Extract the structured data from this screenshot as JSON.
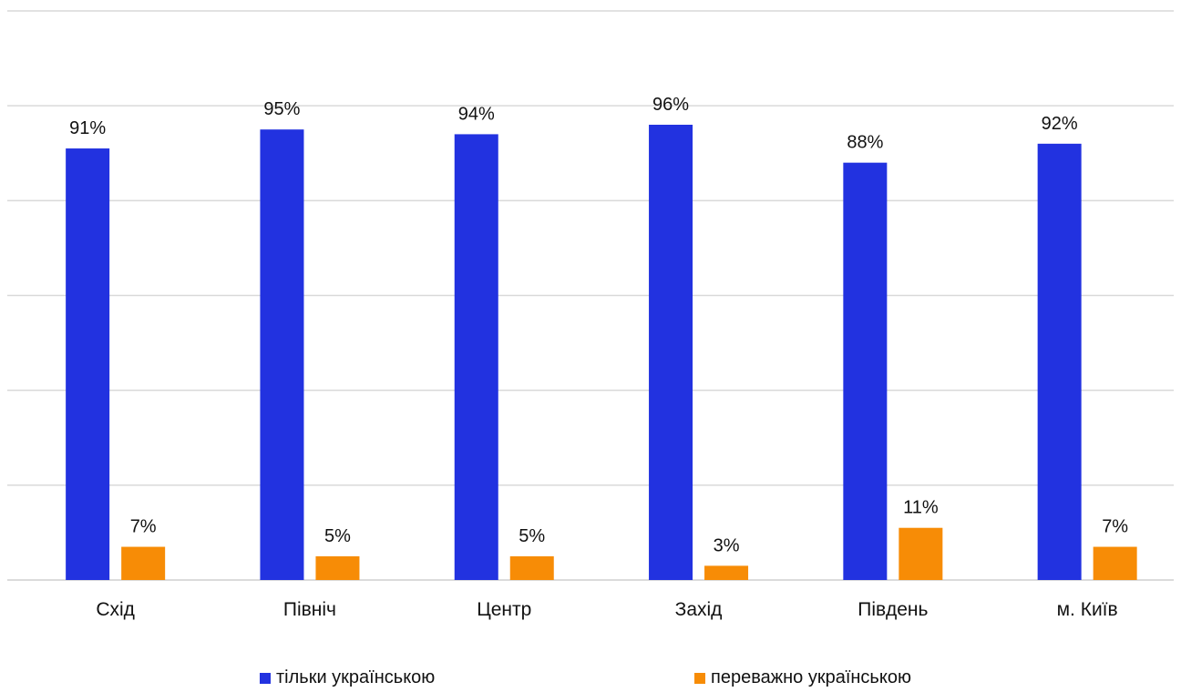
{
  "chart_data": {
    "type": "bar",
    "categories": [
      "Схід",
      "Північ",
      "Центр",
      "Захід",
      "Південь",
      "м. Київ"
    ],
    "series": [
      {
        "name": "тільки українською",
        "values": [
          91,
          95,
          94,
          96,
          88,
          92
        ],
        "labels": [
          "91%",
          "95%",
          "94%",
          "96%",
          "88%",
          "92%"
        ],
        "color": "#2232e0"
      },
      {
        "name": "переважно українською",
        "values": [
          7,
          5,
          5,
          3,
          11,
          7
        ],
        "labels": [
          "7%",
          "5%",
          "5%",
          "3%",
          "11%",
          "7%"
        ],
        "color": "#f78c06"
      }
    ],
    "ylim": [
      0,
      120
    ],
    "grid": true,
    "legend_position": "bottom"
  }
}
